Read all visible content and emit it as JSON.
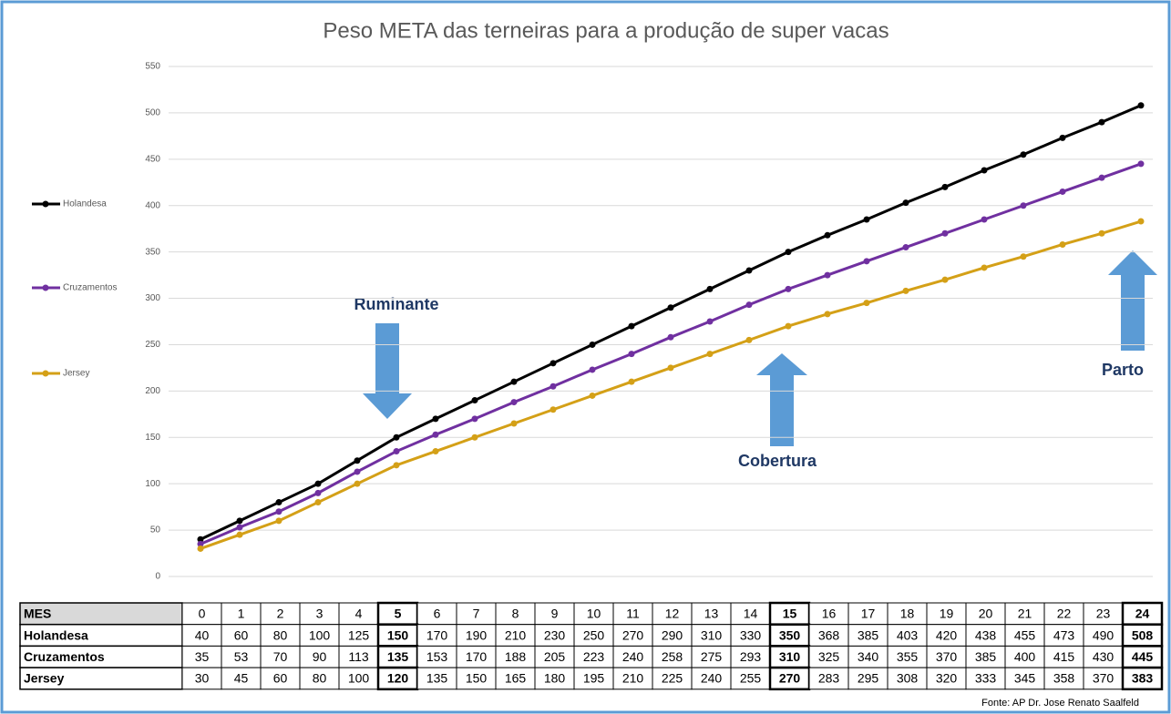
{
  "chart_data": {
    "type": "line",
    "title": "Peso META das terneiras para a produção de super vacas",
    "x_label": "MES",
    "categories": [
      0,
      1,
      2,
      3,
      4,
      5,
      6,
      7,
      8,
      9,
      10,
      11,
      12,
      13,
      14,
      15,
      16,
      17,
      18,
      19,
      20,
      21,
      22,
      23,
      24
    ],
    "highlight": [
      5,
      15,
      24
    ],
    "series": [
      {
        "name": "Holandesa",
        "color": "#000000",
        "values": [
          40,
          60,
          80,
          100,
          125,
          150,
          170,
          190,
          210,
          230,
          250,
          270,
          290,
          310,
          330,
          350,
          368,
          385,
          403,
          420,
          438,
          455,
          473,
          490,
          508
        ]
      },
      {
        "name": "Cruzamentos",
        "color": "#7030a0",
        "values": [
          35,
          53,
          70,
          90,
          113,
          135,
          153,
          170,
          188,
          205,
          223,
          240,
          258,
          275,
          293,
          310,
          325,
          340,
          355,
          370,
          385,
          400,
          415,
          430,
          445
        ]
      },
      {
        "name": "Jersey",
        "color": "#d4a017",
        "values": [
          30,
          45,
          60,
          80,
          100,
          120,
          135,
          150,
          165,
          180,
          195,
          210,
          225,
          240,
          255,
          270,
          283,
          295,
          308,
          320,
          333,
          345,
          358,
          370,
          383
        ]
      }
    ],
    "ylim": [
      0,
      550
    ],
    "yticks": [
      0,
      50,
      100,
      150,
      200,
      250,
      300,
      350,
      400,
      450,
      500,
      550
    ],
    "grid": true,
    "legend": "left",
    "annotations": [
      "Ruminante",
      "Cobertura",
      "Parto"
    ],
    "source": "Fonte: AP Dr. Jose Renato Saalfeld"
  }
}
